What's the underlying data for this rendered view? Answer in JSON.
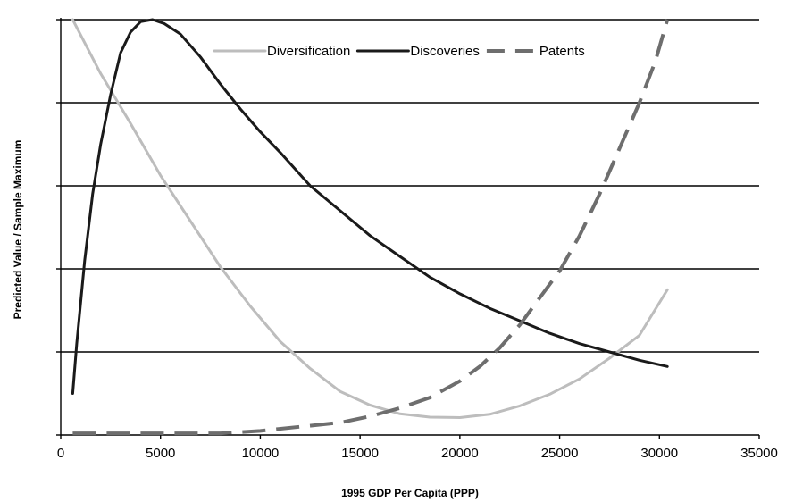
{
  "chart_data": {
    "type": "line",
    "title": "",
    "xlabel": "1995 GDP Per Capita (PPP)",
    "ylabel": "Predicted Value / Sample Maximum",
    "xlim": [
      0,
      35000
    ],
    "ylim": [
      0,
      1
    ],
    "x_ticks": [
      0,
      5000,
      10000,
      15000,
      20000,
      25000,
      30000,
      35000
    ],
    "y_gridlines": [
      0.2,
      0.4,
      0.6,
      0.8,
      1.0
    ],
    "y_tick_labels_shown": false,
    "grid": "horizontal",
    "legend_position": "top-right",
    "series": [
      {
        "name": "Diversification",
        "color": "#bdbdbd",
        "style": "solid",
        "points": [
          [
            600,
            1.0
          ],
          [
            2000,
            0.87
          ],
          [
            3500,
            0.75
          ],
          [
            5000,
            0.625
          ],
          [
            6500,
            0.515
          ],
          [
            8000,
            0.405
          ],
          [
            9500,
            0.31
          ],
          [
            11000,
            0.225
          ],
          [
            12500,
            0.16
          ],
          [
            14000,
            0.105
          ],
          [
            15500,
            0.072
          ],
          [
            17000,
            0.051
          ],
          [
            18500,
            0.043
          ],
          [
            20000,
            0.042
          ],
          [
            21500,
            0.05
          ],
          [
            23000,
            0.07
          ],
          [
            24500,
            0.098
          ],
          [
            26000,
            0.135
          ],
          [
            27500,
            0.185
          ],
          [
            29000,
            0.24
          ],
          [
            30400,
            0.35
          ]
        ]
      },
      {
        "name": "Discoveries",
        "color": "#1a1a1a",
        "style": "solid",
        "points": [
          [
            600,
            0.1
          ],
          [
            800,
            0.22
          ],
          [
            1200,
            0.42
          ],
          [
            1600,
            0.58
          ],
          [
            2000,
            0.7
          ],
          [
            2500,
            0.82
          ],
          [
            3000,
            0.92
          ],
          [
            3500,
            0.97
          ],
          [
            4000,
            0.995
          ],
          [
            4600,
            1.0
          ],
          [
            5200,
            0.99
          ],
          [
            6000,
            0.965
          ],
          [
            7000,
            0.91
          ],
          [
            8000,
            0.845
          ],
          [
            9000,
            0.785
          ],
          [
            10000,
            0.73
          ],
          [
            11000,
            0.68
          ],
          [
            12500,
            0.6
          ],
          [
            14000,
            0.54
          ],
          [
            15500,
            0.48
          ],
          [
            17000,
            0.43
          ],
          [
            18500,
            0.38
          ],
          [
            20000,
            0.34
          ],
          [
            21500,
            0.305
          ],
          [
            23000,
            0.275
          ],
          [
            24500,
            0.245
          ],
          [
            26000,
            0.22
          ],
          [
            27500,
            0.2
          ],
          [
            29000,
            0.18
          ],
          [
            30400,
            0.165
          ]
        ]
      },
      {
        "name": "Patents",
        "color": "#6e6e6e",
        "style": "dashed",
        "points": [
          [
            600,
            0.004
          ],
          [
            4000,
            0.004
          ],
          [
            8000,
            0.004
          ],
          [
            10000,
            0.01
          ],
          [
            12000,
            0.02
          ],
          [
            14000,
            0.03
          ],
          [
            15500,
            0.045
          ],
          [
            17000,
            0.065
          ],
          [
            18500,
            0.09
          ],
          [
            20000,
            0.13
          ],
          [
            21000,
            0.165
          ],
          [
            22000,
            0.21
          ],
          [
            23000,
            0.265
          ],
          [
            24000,
            0.33
          ],
          [
            25000,
            0.395
          ],
          [
            26000,
            0.48
          ],
          [
            27000,
            0.58
          ],
          [
            28000,
            0.69
          ],
          [
            29000,
            0.8
          ],
          [
            29800,
            0.9
          ],
          [
            30400,
            1.0
          ]
        ]
      }
    ]
  }
}
